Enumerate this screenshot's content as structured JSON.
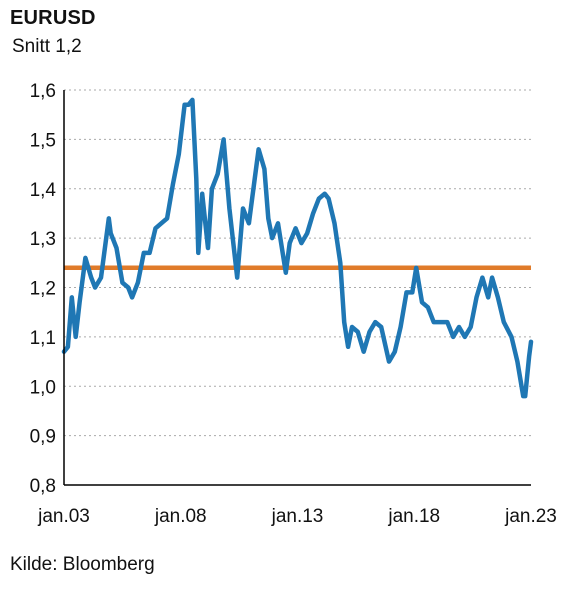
{
  "title": "EURUSD",
  "subtitle": "Snitt 1,2",
  "source": "Kilde: Bloomberg",
  "colors": {
    "series": "#1f77b4",
    "average": "#e07b2a",
    "grid": "#aaaaaa",
    "axis": "#000000"
  },
  "chart_data": {
    "type": "line",
    "title": "EURUSD",
    "ylim": [
      0.8,
      1.6
    ],
    "y_ticks": [
      0.8,
      0.9,
      1.0,
      1.1,
      1.2,
      1.3,
      1.4,
      1.5,
      1.6
    ],
    "y_tick_labels": [
      "0,8",
      "0,9",
      "1,0",
      "1,1",
      "1,2",
      "1,3",
      "1,4",
      "1,5",
      "1,6"
    ],
    "x_ticks": [
      "2003-01",
      "2008-01",
      "2013-01",
      "2018-01",
      "2023-01"
    ],
    "x_tick_labels": [
      "jan.03",
      "jan.08",
      "jan.13",
      "jan.18",
      "jan.23"
    ],
    "grid": "horizontal dashed",
    "reference_line": {
      "y": 1.24
    },
    "series": [
      {
        "points": [
          [
            "2003-01",
            1.07
          ],
          [
            "2003-03",
            1.08
          ],
          [
            "2003-05",
            1.18
          ],
          [
            "2003-07",
            1.1
          ],
          [
            "2003-09",
            1.17
          ],
          [
            "2003-12",
            1.26
          ],
          [
            "2004-03",
            1.22
          ],
          [
            "2004-05",
            1.2
          ],
          [
            "2004-08",
            1.22
          ],
          [
            "2004-12",
            1.34
          ],
          [
            "2005-01",
            1.31
          ],
          [
            "2005-04",
            1.28
          ],
          [
            "2005-07",
            1.21
          ],
          [
            "2005-10",
            1.2
          ],
          [
            "2005-12",
            1.18
          ],
          [
            "2006-03",
            1.21
          ],
          [
            "2006-06",
            1.27
          ],
          [
            "2006-09",
            1.27
          ],
          [
            "2006-12",
            1.32
          ],
          [
            "2007-03",
            1.33
          ],
          [
            "2007-06",
            1.34
          ],
          [
            "2007-09",
            1.41
          ],
          [
            "2007-12",
            1.47
          ],
          [
            "2008-03",
            1.57
          ],
          [
            "2008-05",
            1.57
          ],
          [
            "2008-07",
            1.58
          ],
          [
            "2008-09",
            1.42
          ],
          [
            "2008-10",
            1.27
          ],
          [
            "2008-12",
            1.39
          ],
          [
            "2009-03",
            1.28
          ],
          [
            "2009-05",
            1.4
          ],
          [
            "2009-08",
            1.43
          ],
          [
            "2009-11",
            1.5
          ],
          [
            "2010-02",
            1.36
          ],
          [
            "2010-06",
            1.22
          ],
          [
            "2010-09",
            1.36
          ],
          [
            "2010-12",
            1.33
          ],
          [
            "2011-03",
            1.42
          ],
          [
            "2011-05",
            1.48
          ],
          [
            "2011-08",
            1.44
          ],
          [
            "2011-10",
            1.34
          ],
          [
            "2011-12",
            1.3
          ],
          [
            "2012-03",
            1.33
          ],
          [
            "2012-07",
            1.23
          ],
          [
            "2012-09",
            1.29
          ],
          [
            "2012-12",
            1.32
          ],
          [
            "2013-03",
            1.29
          ],
          [
            "2013-06",
            1.31
          ],
          [
            "2013-09",
            1.35
          ],
          [
            "2013-12",
            1.38
          ],
          [
            "2014-03",
            1.39
          ],
          [
            "2014-05",
            1.38
          ],
          [
            "2014-08",
            1.33
          ],
          [
            "2014-11",
            1.25
          ],
          [
            "2015-01",
            1.13
          ],
          [
            "2015-03",
            1.08
          ],
          [
            "2015-05",
            1.12
          ],
          [
            "2015-08",
            1.11
          ],
          [
            "2015-11",
            1.07
          ],
          [
            "2016-02",
            1.11
          ],
          [
            "2016-05",
            1.13
          ],
          [
            "2016-08",
            1.12
          ],
          [
            "2016-12",
            1.05
          ],
          [
            "2017-03",
            1.07
          ],
          [
            "2017-06",
            1.12
          ],
          [
            "2017-09",
            1.19
          ],
          [
            "2017-12",
            1.19
          ],
          [
            "2018-02",
            1.24
          ],
          [
            "2018-05",
            1.17
          ],
          [
            "2018-08",
            1.16
          ],
          [
            "2018-11",
            1.13
          ],
          [
            "2019-03",
            1.13
          ],
          [
            "2019-06",
            1.13
          ],
          [
            "2019-09",
            1.1
          ],
          [
            "2019-12",
            1.12
          ],
          [
            "2020-03",
            1.1
          ],
          [
            "2020-06",
            1.12
          ],
          [
            "2020-09",
            1.18
          ],
          [
            "2020-12",
            1.22
          ],
          [
            "2021-03",
            1.18
          ],
          [
            "2021-05",
            1.22
          ],
          [
            "2021-08",
            1.18
          ],
          [
            "2021-11",
            1.13
          ],
          [
            "2022-03",
            1.1
          ],
          [
            "2022-06",
            1.05
          ],
          [
            "2022-09",
            0.98
          ],
          [
            "2022-10",
            0.98
          ],
          [
            "2022-12",
            1.06
          ],
          [
            "2023-01",
            1.09
          ]
        ]
      }
    ]
  }
}
